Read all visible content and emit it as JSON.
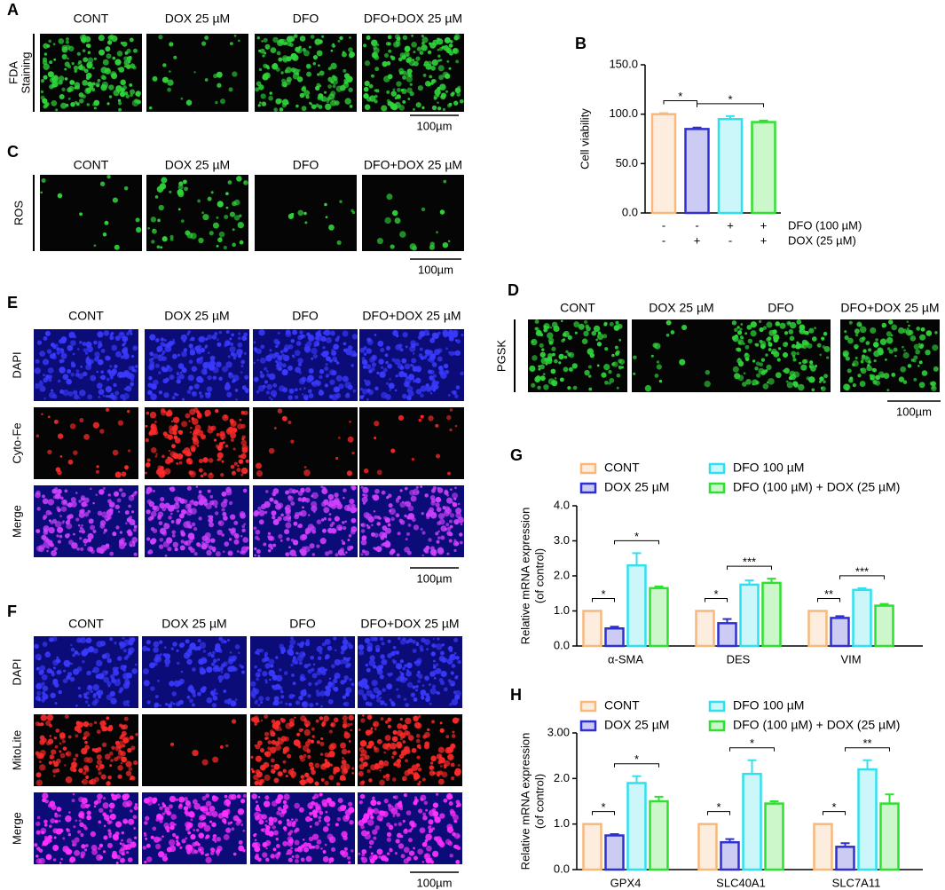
{
  "panels": [
    {
      "label": "A",
      "columns": [
        "CONT",
        "DOX 25 µM",
        "DFO",
        "DFO+DOX 25 µM"
      ],
      "rows": [
        {
          "label": [
            "FDA",
            "Staining"
          ],
          "stain": "#2fd43a",
          "label_color": "#000000"
        }
      ],
      "scale_bar": "100µm"
    },
    {
      "label": "C",
      "columns": [
        "CONT",
        "DOX 25 µM",
        "DFO",
        "DFO+DOX 25 µM"
      ],
      "rows": [
        {
          "label": [
            "ROS"
          ],
          "stain": "#2fd43a",
          "label_color": "#000000"
        }
      ],
      "scale_bar": "100µm"
    },
    {
      "label": "E",
      "columns": [
        "CONT",
        "DOX 25 µM",
        "DFO",
        "DFO+DOX 25 µM"
      ],
      "rows": [
        {
          "label": [
            "DAPI"
          ],
          "stain": "#3a3aff",
          "label_color": "#9ec5ff"
        },
        {
          "label": [
            "Cyto-Fe"
          ],
          "stain": "#ff2a2a",
          "label_color": "#f0a020"
        },
        {
          "label": [
            "Merge"
          ],
          "stain": "#d040ff",
          "label_color": "#000000"
        }
      ],
      "scale_bar": "100µm"
    },
    {
      "label": "F",
      "columns": [
        "CONT",
        "DOX 25 µM",
        "DFO",
        "DFO+DOX 25 µM"
      ],
      "rows": [
        {
          "label": [
            "DAPI"
          ],
          "stain": "#3a3aff",
          "label_color": "#9ec5ff"
        },
        {
          "label": [
            "MitoLite"
          ],
          "stain": "#ff2a2a",
          "label_color": "#ff2020"
        },
        {
          "label": [
            "Merge"
          ],
          "stain": "#ff30ff",
          "label_color": "#000000"
        }
      ],
      "scale_bar": "100µm"
    },
    {
      "label": "D",
      "columns": [
        "CONT",
        "DOX 25 µM",
        "DFO",
        "DFO+DOX 25 µM"
      ],
      "rows": [
        {
          "label": [
            "PGSK"
          ],
          "stain": "#2fd43a",
          "label_color": "#000000"
        }
      ],
      "scale_bar": "100µm"
    }
  ],
  "chart_data": [
    {
      "label": "B",
      "type": "bar",
      "ylabel": [
        "Cell viability"
      ],
      "ylim": [
        0,
        150
      ],
      "yticks": [
        {
          "value": 0,
          "label": "0.0"
        },
        {
          "value": 50,
          "label": "50.0"
        },
        {
          "value": 100,
          "label": "100.0"
        },
        {
          "value": 150,
          "label": "150.0"
        }
      ],
      "values": [
        100,
        85,
        95,
        92
      ],
      "errors": [
        1,
        1.5,
        3,
        1.5
      ],
      "colors": [
        "#f7b97b",
        "#3030d0",
        "#30e0f0",
        "#30e030"
      ],
      "treatments": [
        {
          "label": "DFO (100 µM)",
          "signs": [
            "-",
            "-",
            "+",
            "+"
          ]
        },
        {
          "label": "DOX (25 µM)",
          "signs": [
            "-",
            "+",
            "-",
            "+"
          ]
        }
      ],
      "significance": [
        {
          "from": 0,
          "to": 1,
          "label": "*"
        },
        {
          "from": 1,
          "to": 3,
          "label": "*"
        }
      ]
    },
    {
      "label": "G",
      "type": "grouped-bar",
      "ylabel": [
        "Relative mRNA expression",
        "(of control)"
      ],
      "categories": [
        "α-SMA",
        "DES",
        "VIM"
      ],
      "ylim": [
        0,
        4
      ],
      "yticks": [
        {
          "value": 0,
          "label": "0.0"
        },
        {
          "value": 1,
          "label": "1.0"
        },
        {
          "value": 2,
          "label": "2.0"
        },
        {
          "value": 3,
          "label": "3.0"
        },
        {
          "value": 4,
          "label": "4.0"
        }
      ],
      "series": [
        {
          "name": "CONT",
          "color": "#f7b97b",
          "values": [
            1.0,
            1.0,
            1.0
          ],
          "errors": [
            0,
            0,
            0
          ]
        },
        {
          "name": "DOX 25 µM",
          "color": "#3030d0",
          "values": [
            0.5,
            0.65,
            0.8
          ],
          "errors": [
            0.05,
            0.12,
            0.05
          ]
        },
        {
          "name": "DFO 100 µM",
          "color": "#30e0f0",
          "values": [
            2.3,
            1.75,
            1.6
          ],
          "errors": [
            0.35,
            0.12,
            0.05
          ]
        },
        {
          "name": "DFO (100 µM) + DOX (25 µM)",
          "color": "#30e030",
          "values": [
            1.65,
            1.8,
            1.15
          ],
          "errors": [
            0.05,
            0.12,
            0.05
          ]
        }
      ],
      "significance": [
        {
          "category": 0,
          "from": 0,
          "to": 1,
          "label": "*"
        },
        {
          "category": 0,
          "from": 1,
          "to": 3,
          "label": "*"
        },
        {
          "category": 1,
          "from": 0,
          "to": 1,
          "label": "*"
        },
        {
          "category": 1,
          "from": 1,
          "to": 3,
          "label": "***"
        },
        {
          "category": 2,
          "from": 0,
          "to": 1,
          "label": "**"
        },
        {
          "category": 2,
          "from": 1,
          "to": 3,
          "label": "***"
        }
      ]
    },
    {
      "label": "H",
      "type": "grouped-bar",
      "ylabel": [
        "Relative mRNA expression",
        "(of control)"
      ],
      "categories": [
        "GPX4",
        "SLC40A1",
        "SLC7A11"
      ],
      "ylim": [
        0,
        3
      ],
      "yticks": [
        {
          "value": 0,
          "label": "0.0"
        },
        {
          "value": 1,
          "label": "1.0"
        },
        {
          "value": 2,
          "label": "2.0"
        },
        {
          "value": 3,
          "label": "3.00"
        }
      ],
      "series": [
        {
          "name": "CONT",
          "color": "#f7b97b",
          "values": [
            1.0,
            1.0,
            1.0
          ],
          "errors": [
            0,
            0,
            0
          ]
        },
        {
          "name": "DOX 25 µM",
          "color": "#3030d0",
          "values": [
            0.75,
            0.6,
            0.5
          ],
          "errors": [
            0.03,
            0.07,
            0.08
          ]
        },
        {
          "name": "DFO 100 µM",
          "color": "#30e0f0",
          "values": [
            1.9,
            2.1,
            2.2
          ],
          "errors": [
            0.15,
            0.3,
            0.2
          ]
        },
        {
          "name": "DFO (100 µM) + DOX (25 µM)",
          "color": "#30e030",
          "values": [
            1.5,
            1.45,
            1.45
          ],
          "errors": [
            0.1,
            0.05,
            0.2
          ]
        }
      ],
      "significance": [
        {
          "category": 0,
          "from": 0,
          "to": 1,
          "label": "*"
        },
        {
          "category": 0,
          "from": 1,
          "to": 3,
          "label": "*"
        },
        {
          "category": 1,
          "from": 0,
          "to": 1,
          "label": "*"
        },
        {
          "category": 1,
          "from": 1,
          "to": 3,
          "label": "*"
        },
        {
          "category": 2,
          "from": 0,
          "to": 1,
          "label": "*"
        },
        {
          "category": 2,
          "from": 1,
          "to": 3,
          "label": "**"
        }
      ]
    }
  ]
}
